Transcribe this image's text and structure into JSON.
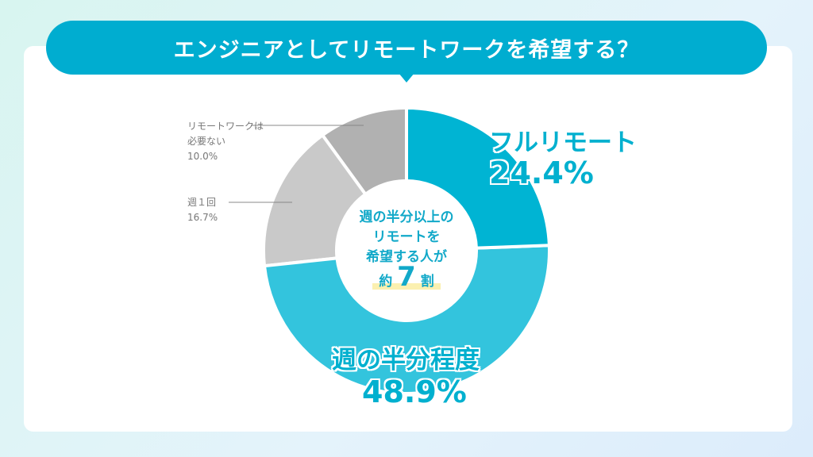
{
  "title": "エンジニアとしてリモートワークを希望する？",
  "center": {
    "line1": "週の半分以上の",
    "line2": "リモートを",
    "line3": "希望する人が",
    "prefix": "約",
    "number": "7",
    "suffix": "割"
  },
  "chart_data": {
    "type": "pie",
    "donut": true,
    "title": "エンジニアとしてリモートワークを希望する？",
    "slices": [
      {
        "label": "フルリモート",
        "value": 24.4,
        "value_label": "24.4%",
        "color": "#00b4d3"
      },
      {
        "label": "週の半分程度",
        "value": 48.9,
        "value_label": "48.9%",
        "color": "#33c4dd"
      },
      {
        "label": "週１回",
        "value": 16.7,
        "value_label": "16.7%",
        "color": "#c9c9c9"
      },
      {
        "label": "リモートワークは必要ない",
        "value": 10.0,
        "value_label": "10.0%",
        "color": "#b1b1b1"
      }
    ]
  },
  "labels": {
    "full": {
      "name": "フルリモート",
      "pct": "24.4%"
    },
    "half": {
      "name": "週の半分程度",
      "pct": "48.9%"
    },
    "weekly": {
      "name": "週１回",
      "pct": "16.7%"
    },
    "none": {
      "name1": "リモートワークは",
      "name2": "必要ない",
      "pct": "10.0%"
    }
  }
}
